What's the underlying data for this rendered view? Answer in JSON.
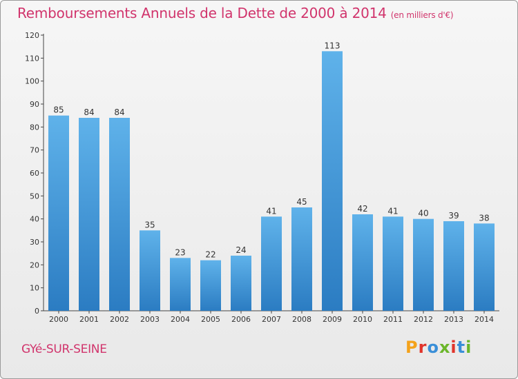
{
  "header": {
    "title": "Remboursements Annuels de la Dette de 2000 à 2014",
    "unit": "(en milliers d'€)"
  },
  "footer": {
    "town": "GYé-SUR-SEINE",
    "brand": "Proxiti"
  },
  "colors": {
    "title": "#d1346c",
    "bar_top": "#5fb2ea",
    "bar_bottom": "#2b7cc2",
    "axis": "#444444",
    "brand_letters": [
      "#f4a21b",
      "#e0342b",
      "#3a8fd8",
      "#6bb62a",
      "#e0342b",
      "#3a8fd8",
      "#6bb62a"
    ]
  },
  "chart_data": {
    "type": "bar",
    "title": "Remboursements Annuels de la Dette de 2000 à 2014",
    "xlabel": "",
    "ylabel": "",
    "categories": [
      "2000",
      "2001",
      "2002",
      "2003",
      "2004",
      "2005",
      "2006",
      "2007",
      "2008",
      "2009",
      "2010",
      "2011",
      "2012",
      "2013",
      "2014"
    ],
    "values": [
      85,
      84,
      84,
      35,
      23,
      22,
      24,
      41,
      45,
      113,
      42,
      41,
      40,
      39,
      38
    ],
    "ylim": [
      0,
      120
    ],
    "yticks": [
      0,
      10,
      20,
      30,
      40,
      50,
      60,
      70,
      80,
      90,
      100,
      110,
      120
    ],
    "grid": false,
    "data_labels": true
  }
}
